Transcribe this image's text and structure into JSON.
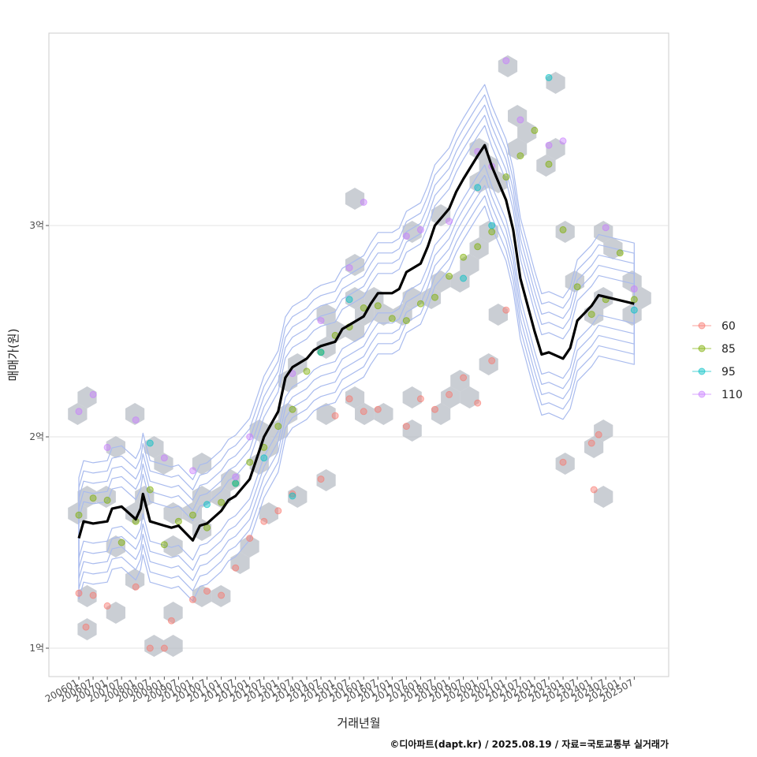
{
  "chart_data": {
    "type": "scatter",
    "xlabel": "거래년월",
    "ylabel": "매매가(원)",
    "caption": "©디아파트(dapt.kr) / 2025.08.19 / 자료=국토교통부 실거래가",
    "x_ticks": [
      "200601",
      "200607",
      "200701",
      "200707",
      "200801",
      "200807",
      "200901",
      "200907",
      "201001",
      "201007",
      "201101",
      "201107",
      "201201",
      "201207",
      "201301",
      "201307",
      "201401",
      "201407",
      "201501",
      "201507",
      "201601",
      "201607",
      "201701",
      "201707",
      "201801",
      "201807",
      "201901",
      "201907",
      "202001",
      "202007",
      "202101",
      "202107",
      "202201",
      "202207",
      "202301",
      "202307",
      "202401",
      "202407",
      "202501",
      "202507"
    ],
    "y_ticks": [
      {
        "value": 100000000,
        "label": "1억"
      },
      {
        "value": 200000000,
        "label": "2억"
      },
      {
        "value": 300000000,
        "label": "3억"
      }
    ],
    "ylim": [
      85000000,
      390000000
    ],
    "grid": true,
    "legend_position": "right",
    "colors": {
      "60": "#f8766d",
      "85": "#7cae00",
      "95": "#00bfc4",
      "110": "#c77cff",
      "trend": "#000000",
      "hex": "#b8bec6",
      "density": "#a9bbee"
    },
    "series": [
      {
        "name": "60",
        "points": [
          [
            "200601",
            126
          ],
          [
            "200604",
            110
          ],
          [
            "200607",
            125
          ],
          [
            "200701",
            120
          ],
          [
            "200801",
            129
          ],
          [
            "200807",
            100
          ],
          [
            "200901",
            100
          ],
          [
            "200904",
            113
          ],
          [
            "201001",
            123
          ],
          [
            "201007",
            127
          ],
          [
            "201101",
            125
          ],
          [
            "201107",
            138
          ],
          [
            "201201",
            152
          ],
          [
            "201207",
            160
          ],
          [
            "201301",
            165
          ],
          [
            "201307",
            173
          ],
          [
            "201407",
            180
          ],
          [
            "201501",
            210
          ],
          [
            "201507",
            218
          ],
          [
            "201601",
            212
          ],
          [
            "201607",
            213
          ],
          [
            "201707",
            205
          ],
          [
            "201801",
            218
          ],
          [
            "201807",
            213
          ],
          [
            "201901",
            220
          ],
          [
            "201907",
            228
          ],
          [
            "202001",
            216
          ],
          [
            "202007",
            236
          ],
          [
            "202101",
            260
          ],
          [
            "202301",
            188
          ],
          [
            "202401",
            197
          ],
          [
            "202402",
            175
          ],
          [
            "202404",
            201
          ]
        ]
      },
      {
        "name": "85",
        "points": [
          [
            "200601",
            163
          ],
          [
            "200607",
            171
          ],
          [
            "200701",
            170
          ],
          [
            "200707",
            150
          ],
          [
            "200801",
            160
          ],
          [
            "200807",
            175
          ],
          [
            "200901",
            149
          ],
          [
            "200907",
            160
          ],
          [
            "201001",
            163
          ],
          [
            "201007",
            157
          ],
          [
            "201101",
            169
          ],
          [
            "201107",
            178
          ],
          [
            "201201",
            188
          ],
          [
            "201207",
            195
          ],
          [
            "201301",
            205
          ],
          [
            "201307",
            213
          ],
          [
            "201401",
            231
          ],
          [
            "201407",
            240
          ],
          [
            "201501",
            248
          ],
          [
            "201507",
            252
          ],
          [
            "201601",
            261
          ],
          [
            "201607",
            262
          ],
          [
            "201701",
            256
          ],
          [
            "201707",
            255
          ],
          [
            "201801",
            263
          ],
          [
            "201807",
            266
          ],
          [
            "201901",
            276
          ],
          [
            "201907",
            285
          ],
          [
            "202001",
            290
          ],
          [
            "202007",
            297
          ],
          [
            "202101",
            323
          ],
          [
            "202107",
            333
          ],
          [
            "202201",
            345
          ],
          [
            "202207",
            329
          ],
          [
            "202301",
            298
          ],
          [
            "202307",
            271
          ],
          [
            "202401",
            258
          ],
          [
            "202407",
            265
          ],
          [
            "202501",
            287
          ],
          [
            "202507",
            265
          ]
        ]
      },
      {
        "name": "95",
        "points": [
          [
            "200807",
            197
          ],
          [
            "201007",
            168
          ],
          [
            "201107",
            178
          ],
          [
            "201207",
            190
          ],
          [
            "201307",
            172
          ],
          [
            "201407",
            240
          ],
          [
            "201507",
            265
          ],
          [
            "201907",
            275
          ],
          [
            "202001",
            318
          ],
          [
            "202007",
            300
          ],
          [
            "202207",
            370
          ],
          [
            "202507",
            260
          ]
        ]
      },
      {
        "name": "110",
        "points": [
          [
            "200601",
            212
          ],
          [
            "200607",
            220
          ],
          [
            "200701",
            195
          ],
          [
            "200801",
            208
          ],
          [
            "200901",
            190
          ],
          [
            "201001",
            184
          ],
          [
            "201107",
            181
          ],
          [
            "201201",
            200
          ],
          [
            "201307",
            230
          ],
          [
            "201407",
            255
          ],
          [
            "201507",
            280
          ],
          [
            "201601",
            311
          ],
          [
            "201707",
            295
          ],
          [
            "201801",
            298
          ],
          [
            "201901",
            302
          ],
          [
            "202001",
            335
          ],
          [
            "202007",
            328
          ],
          [
            "202101",
            378
          ],
          [
            "202107",
            350
          ],
          [
            "202207",
            338
          ],
          [
            "202301",
            340
          ],
          [
            "202407",
            299
          ],
          [
            "202507",
            270
          ]
        ]
      },
      {
        "name": "trend",
        "points": [
          [
            "200601",
            152
          ],
          [
            "200603",
            160
          ],
          [
            "200607",
            159
          ],
          [
            "200701",
            160
          ],
          [
            "200703",
            166
          ],
          [
            "200707",
            167
          ],
          [
            "200801",
            161
          ],
          [
            "200803",
            166
          ],
          [
            "200804",
            173
          ],
          [
            "200807",
            160
          ],
          [
            "200901",
            158
          ],
          [
            "200904",
            157
          ],
          [
            "200907",
            158
          ],
          [
            "201001",
            151
          ],
          [
            "201004",
            158
          ],
          [
            "201007",
            159
          ],
          [
            "201101",
            165
          ],
          [
            "201104",
            170
          ],
          [
            "201107",
            172
          ],
          [
            "201201",
            180
          ],
          [
            "201204",
            190
          ],
          [
            "201207",
            200
          ],
          [
            "201301",
            212
          ],
          [
            "201304",
            228
          ],
          [
            "201307",
            233
          ],
          [
            "201401",
            237
          ],
          [
            "201404",
            241
          ],
          [
            "201407",
            243
          ],
          [
            "201501",
            245
          ],
          [
            "201504",
            251
          ],
          [
            "201507",
            253
          ],
          [
            "201601",
            257
          ],
          [
            "201604",
            263
          ],
          [
            "201607",
            268
          ],
          [
            "201701",
            268
          ],
          [
            "201704",
            270
          ],
          [
            "201707",
            278
          ],
          [
            "201801",
            282
          ],
          [
            "201804",
            290
          ],
          [
            "201807",
            300
          ],
          [
            "201901",
            308
          ],
          [
            "201904",
            316
          ],
          [
            "201907",
            322
          ],
          [
            "202001",
            333
          ],
          [
            "202004",
            338
          ],
          [
            "202007",
            328
          ],
          [
            "202101",
            312
          ],
          [
            "202104",
            298
          ],
          [
            "202107",
            275
          ],
          [
            "202201",
            250
          ],
          [
            "202204",
            239
          ],
          [
            "202207",
            240
          ],
          [
            "202301",
            237
          ],
          [
            "202304",
            242
          ],
          [
            "202307",
            255
          ],
          [
            "202401",
            262
          ],
          [
            "202404",
            267
          ],
          [
            "202507",
            263
          ]
        ]
      }
    ]
  }
}
